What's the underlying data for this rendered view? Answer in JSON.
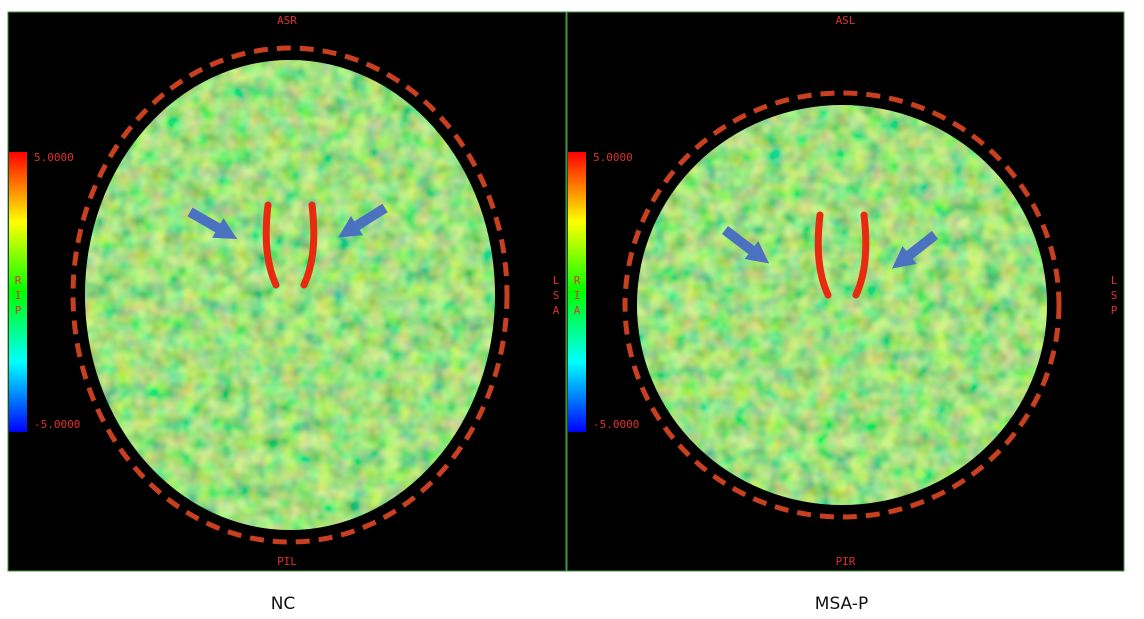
{
  "panels": [
    {
      "top_label": "ASR",
      "bottom_label": "PIL",
      "left_label": [
        "R",
        "I",
        "P"
      ],
      "right_label": [
        "L",
        "S",
        "A"
      ],
      "scale_max": "5.0000",
      "scale_min": "-5.0000",
      "caption": "NC"
    },
    {
      "top_label": "ASL",
      "bottom_label": "PIR",
      "left_label": [
        "R",
        "I",
        "A"
      ],
      "right_label": [
        "L",
        "S",
        "P"
      ],
      "scale_max": "5.0000",
      "scale_min": "-5.0000",
      "caption": "MSA-P"
    }
  ]
}
